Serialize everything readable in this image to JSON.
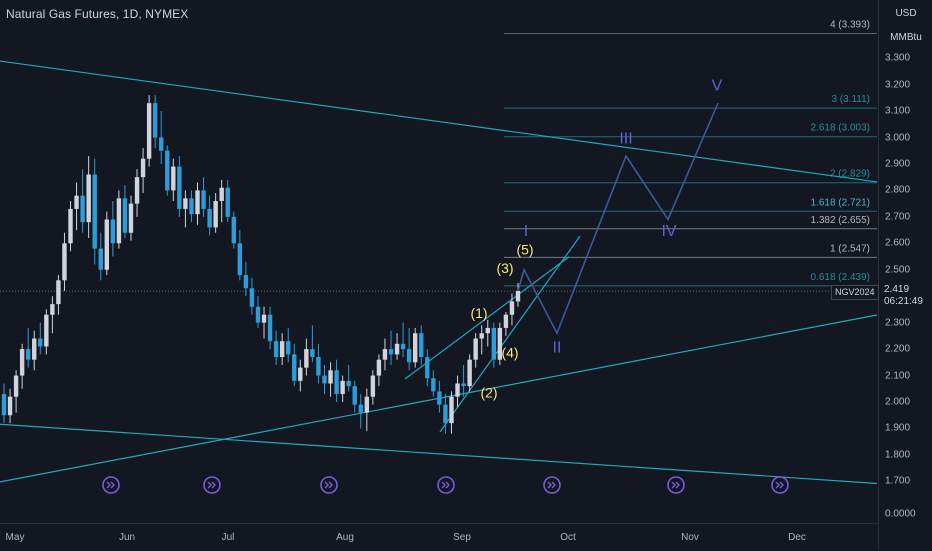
{
  "title": "Natural Gas Futures, 1D, NYMEX",
  "price_axis": {
    "currency": "USD",
    "unit": "MMBtu",
    "ticks": [
      "3.300",
      "3.200",
      "3.100",
      "3.000",
      "2.900",
      "2.800",
      "2.700",
      "2.600",
      "2.500",
      "2.400",
      "2.300",
      "2.200",
      "2.100",
      "2.000",
      "1.900",
      "1.800",
      "1.700",
      "0.0000"
    ]
  },
  "time_axis": {
    "ticks": [
      "May",
      "Jun",
      "Jul",
      "Aug",
      "Sep",
      "Oct",
      "Nov",
      "Dec"
    ]
  },
  "last_price": {
    "symbol": "NGV2024",
    "value": "2.419",
    "countdown": "06:21:49"
  },
  "colors": {
    "background": "#131722",
    "up": "#d1d4dc",
    "down": "#2e9cd6",
    "trendline": "#22a8bc",
    "fib_line": "#1e6f78",
    "wave_path": "#3c5a95",
    "wave_yellow": "#f7e57d",
    "wave_blue": "#5c63d6",
    "event_icon": "#7b5cd6"
  },
  "chart_data": {
    "type": "candlestick",
    "title": "Natural Gas Futures, 1D, NYMEX",
    "ylim": [
      1.62,
      3.46
    ],
    "candles": [
      {
        "t": "May",
        "o": 2.03,
        "h": 2.07,
        "l": 1.92,
        "c": 1.95
      },
      {
        "t": "May",
        "o": 1.95,
        "h": 2.05,
        "l": 1.92,
        "c": 2.02
      },
      {
        "t": "May",
        "o": 2.02,
        "h": 2.12,
        "l": 1.96,
        "c": 2.1
      },
      {
        "t": "May",
        "o": 2.1,
        "h": 2.22,
        "l": 2.05,
        "c": 2.2
      },
      {
        "t": "May",
        "o": 2.2,
        "h": 2.28,
        "l": 2.13,
        "c": 2.16
      },
      {
        "t": "May",
        "o": 2.16,
        "h": 2.27,
        "l": 2.12,
        "c": 2.24
      },
      {
        "t": "May",
        "o": 2.24,
        "h": 2.3,
        "l": 2.18,
        "c": 2.21
      },
      {
        "t": "May",
        "o": 2.21,
        "h": 2.35,
        "l": 2.18,
        "c": 2.33
      },
      {
        "t": "May",
        "o": 2.33,
        "h": 2.4,
        "l": 2.26,
        "c": 2.37
      },
      {
        "t": "May",
        "o": 2.37,
        "h": 2.48,
        "l": 2.33,
        "c": 2.46
      },
      {
        "t": "May",
        "o": 2.46,
        "h": 2.64,
        "l": 2.42,
        "c": 2.6
      },
      {
        "t": "May",
        "o": 2.6,
        "h": 2.76,
        "l": 2.57,
        "c": 2.73
      },
      {
        "t": "May",
        "o": 2.73,
        "h": 2.83,
        "l": 2.65,
        "c": 2.78
      },
      {
        "t": "May",
        "o": 2.78,
        "h": 2.88,
        "l": 2.64,
        "c": 2.68
      },
      {
        "t": "May",
        "o": 2.68,
        "h": 2.93,
        "l": 2.62,
        "c": 2.86
      },
      {
        "t": "May",
        "o": 2.86,
        "h": 2.92,
        "l": 2.52,
        "c": 2.58
      },
      {
        "t": "May",
        "o": 2.58,
        "h": 2.64,
        "l": 2.46,
        "c": 2.5
      },
      {
        "t": "May",
        "o": 2.5,
        "h": 2.72,
        "l": 2.48,
        "c": 2.69
      },
      {
        "t": "May",
        "o": 2.69,
        "h": 2.76,
        "l": 2.55,
        "c": 2.6
      },
      {
        "t": "May",
        "o": 2.6,
        "h": 2.8,
        "l": 2.58,
        "c": 2.77
      },
      {
        "t": "May",
        "o": 2.77,
        "h": 2.82,
        "l": 2.62,
        "c": 2.64
      },
      {
        "t": "May",
        "o": 2.64,
        "h": 2.78,
        "l": 2.61,
        "c": 2.75
      },
      {
        "t": "Jun",
        "o": 2.75,
        "h": 2.88,
        "l": 2.7,
        "c": 2.85
      },
      {
        "t": "Jun",
        "o": 2.85,
        "h": 2.96,
        "l": 2.79,
        "c": 2.92
      },
      {
        "t": "Jun",
        "o": 2.92,
        "h": 3.16,
        "l": 2.89,
        "c": 3.13
      },
      {
        "t": "Jun",
        "o": 3.13,
        "h": 3.16,
        "l": 2.96,
        "c": 3.0
      },
      {
        "t": "Jun",
        "o": 3.0,
        "h": 3.1,
        "l": 2.9,
        "c": 2.95
      },
      {
        "t": "Jun",
        "o": 2.95,
        "h": 2.97,
        "l": 2.78,
        "c": 2.8
      },
      {
        "t": "Jun",
        "o": 2.8,
        "h": 2.92,
        "l": 2.76,
        "c": 2.89
      },
      {
        "t": "Jun",
        "o": 2.89,
        "h": 2.93,
        "l": 2.7,
        "c": 2.73
      },
      {
        "t": "Jun",
        "o": 2.73,
        "h": 2.8,
        "l": 2.66,
        "c": 2.77
      },
      {
        "t": "Jun",
        "o": 2.77,
        "h": 2.8,
        "l": 2.68,
        "c": 2.71
      },
      {
        "t": "Jun",
        "o": 2.71,
        "h": 2.83,
        "l": 2.67,
        "c": 2.8
      },
      {
        "t": "Jun",
        "o": 2.8,
        "h": 2.85,
        "l": 2.7,
        "c": 2.73
      },
      {
        "t": "Jun",
        "o": 2.73,
        "h": 2.78,
        "l": 2.63,
        "c": 2.66
      },
      {
        "t": "Jun",
        "o": 2.66,
        "h": 2.79,
        "l": 2.64,
        "c": 2.76
      },
      {
        "t": "Jun",
        "o": 2.76,
        "h": 2.84,
        "l": 2.68,
        "c": 2.81
      },
      {
        "t": "Jun",
        "o": 2.81,
        "h": 2.84,
        "l": 2.68,
        "c": 2.7
      },
      {
        "t": "Jun",
        "o": 2.7,
        "h": 2.72,
        "l": 2.58,
        "c": 2.6
      },
      {
        "t": "Jul",
        "o": 2.6,
        "h": 2.65,
        "l": 2.46,
        "c": 2.48
      },
      {
        "t": "Jul",
        "o": 2.48,
        "h": 2.53,
        "l": 2.4,
        "c": 2.43
      },
      {
        "t": "Jul",
        "o": 2.43,
        "h": 2.47,
        "l": 2.33,
        "c": 2.36
      },
      {
        "t": "Jul",
        "o": 2.36,
        "h": 2.4,
        "l": 2.28,
        "c": 2.3
      },
      {
        "t": "Jul",
        "o": 2.3,
        "h": 2.36,
        "l": 2.24,
        "c": 2.33
      },
      {
        "t": "Jul",
        "o": 2.33,
        "h": 2.36,
        "l": 2.2,
        "c": 2.23
      },
      {
        "t": "Jul",
        "o": 2.23,
        "h": 2.27,
        "l": 2.14,
        "c": 2.17
      },
      {
        "t": "Jul",
        "o": 2.17,
        "h": 2.26,
        "l": 2.14,
        "c": 2.23
      },
      {
        "t": "Jul",
        "o": 2.23,
        "h": 2.28,
        "l": 2.15,
        "c": 2.18
      },
      {
        "t": "Jul",
        "o": 2.18,
        "h": 2.22,
        "l": 2.06,
        "c": 2.08
      },
      {
        "t": "Jul",
        "o": 2.08,
        "h": 2.16,
        "l": 2.04,
        "c": 2.13
      },
      {
        "t": "Jul",
        "o": 2.13,
        "h": 2.24,
        "l": 2.1,
        "c": 2.2
      },
      {
        "t": "Jul",
        "o": 2.2,
        "h": 2.29,
        "l": 2.15,
        "c": 2.17
      },
      {
        "t": "Jul",
        "o": 2.17,
        "h": 2.22,
        "l": 2.07,
        "c": 2.1
      },
      {
        "t": "Jul",
        "o": 2.1,
        "h": 2.14,
        "l": 2.03,
        "c": 2.07
      },
      {
        "t": "Jul",
        "o": 2.07,
        "h": 2.15,
        "l": 2.02,
        "c": 2.12
      },
      {
        "t": "Jul",
        "o": 2.12,
        "h": 2.16,
        "l": 2.0,
        "c": 2.03
      },
      {
        "t": "Aug",
        "o": 2.03,
        "h": 2.1,
        "l": 2.0,
        "c": 2.08
      },
      {
        "t": "Aug",
        "o": 2.08,
        "h": 2.14,
        "l": 2.04,
        "c": 2.06
      },
      {
        "t": "Aug",
        "o": 2.06,
        "h": 2.08,
        "l": 1.96,
        "c": 1.99
      },
      {
        "t": "Aug",
        "o": 1.99,
        "h": 2.03,
        "l": 1.9,
        "c": 1.96
      },
      {
        "t": "Aug",
        "o": 1.96,
        "h": 2.05,
        "l": 1.89,
        "c": 2.02
      },
      {
        "t": "Aug",
        "o": 2.02,
        "h": 2.12,
        "l": 1.99,
        "c": 2.1
      },
      {
        "t": "Aug",
        "o": 2.1,
        "h": 2.18,
        "l": 2.06,
        "c": 2.16
      },
      {
        "t": "Aug",
        "o": 2.16,
        "h": 2.24,
        "l": 2.12,
        "c": 2.2
      },
      {
        "t": "Aug",
        "o": 2.2,
        "h": 2.27,
        "l": 2.14,
        "c": 2.18
      },
      {
        "t": "Aug",
        "o": 2.18,
        "h": 2.26,
        "l": 2.16,
        "c": 2.22
      },
      {
        "t": "Aug",
        "o": 2.22,
        "h": 2.3,
        "l": 2.17,
        "c": 2.2
      },
      {
        "t": "Aug",
        "o": 2.2,
        "h": 2.28,
        "l": 2.12,
        "c": 2.15
      },
      {
        "t": "Aug",
        "o": 2.15,
        "h": 2.28,
        "l": 2.13,
        "c": 2.26
      },
      {
        "t": "Aug",
        "o": 2.26,
        "h": 2.29,
        "l": 2.14,
        "c": 2.17
      },
      {
        "t": "Aug",
        "o": 2.17,
        "h": 2.2,
        "l": 2.06,
        "c": 2.09
      },
      {
        "t": "Aug",
        "o": 2.09,
        "h": 2.12,
        "l": 2.02,
        "c": 2.04
      },
      {
        "t": "Aug",
        "o": 2.04,
        "h": 2.08,
        "l": 1.96,
        "c": 1.99
      },
      {
        "t": "Aug",
        "o": 1.99,
        "h": 2.03,
        "l": 1.88,
        "c": 1.92
      },
      {
        "t": "Sep",
        "o": 1.92,
        "h": 2.04,
        "l": 1.88,
        "c": 2.02
      },
      {
        "t": "Sep",
        "o": 2.02,
        "h": 2.1,
        "l": 1.98,
        "c": 2.07
      },
      {
        "t": "Sep",
        "o": 2.07,
        "h": 2.14,
        "l": 2.02,
        "c": 2.06
      },
      {
        "t": "Sep",
        "o": 2.06,
        "h": 2.18,
        "l": 2.04,
        "c": 2.16
      },
      {
        "t": "Sep",
        "o": 2.16,
        "h": 2.26,
        "l": 2.13,
        "c": 2.24
      },
      {
        "t": "Sep",
        "o": 2.24,
        "h": 2.29,
        "l": 2.18,
        "c": 2.26
      },
      {
        "t": "Sep",
        "o": 2.26,
        "h": 2.31,
        "l": 2.21,
        "c": 2.28
      },
      {
        "t": "Sep",
        "o": 2.28,
        "h": 2.3,
        "l": 2.13,
        "c": 2.16
      },
      {
        "t": "Sep",
        "o": 2.16,
        "h": 2.3,
        "l": 2.14,
        "c": 2.28
      },
      {
        "t": "Sep",
        "o": 2.28,
        "h": 2.34,
        "l": 2.25,
        "c": 2.33
      },
      {
        "t": "Sep",
        "o": 2.33,
        "h": 2.41,
        "l": 2.29,
        "c": 2.38
      },
      {
        "t": "Sep",
        "o": 2.38,
        "h": 2.45,
        "l": 2.36,
        "c": 2.42
      }
    ],
    "trendlines": [
      {
        "x": [
          0,
          877
        ],
        "y": [
          3.289,
          2.832
        ]
      },
      {
        "x": [
          0,
          877
        ],
        "y": [
          1.916,
          1.692
        ]
      },
      {
        "x": [
          0,
          877
        ],
        "y": [
          1.698,
          2.329
        ]
      },
      {
        "x": [
          405,
          569
        ],
        "y": [
          2.087,
          2.549
        ]
      },
      {
        "x": [
          440,
          580
        ],
        "y": [
          1.887,
          2.627
        ]
      }
    ],
    "fib_levels": [
      {
        "label": "4 (3.393)",
        "value": 3.393
      },
      {
        "label": "3 (3.111)",
        "value": 3.111
      },
      {
        "label": "2.618 (3.003)",
        "value": 3.003
      },
      {
        "label": "2 (2.829)",
        "value": 2.829
      },
      {
        "label": "1.618 (2.721)",
        "value": 2.721
      },
      {
        "label": "1.382 (2.655)",
        "value": 2.655
      },
      {
        "label": "1 (2.547)",
        "value": 2.547
      },
      {
        "label": "0.618 (2.439)",
        "value": 2.439
      }
    ],
    "waves": [
      {
        "label": "(1)",
        "price": 2.34
      },
      {
        "label": "(2)",
        "price": 2.04
      },
      {
        "label": "(3)",
        "price": 2.51
      },
      {
        "label": "(4)",
        "price": 2.19
      },
      {
        "label": "(5)",
        "price": 2.58
      },
      {
        "label": "I",
        "price": 2.65
      },
      {
        "label": "II",
        "price": 2.21
      },
      {
        "label": "III",
        "price": 3.0
      },
      {
        "label": "IV",
        "price": 2.65
      },
      {
        "label": "V",
        "price": 3.2
      }
    ],
    "projection_path": [
      {
        "t": "Sep",
        "price": 2.42
      },
      {
        "t": "Sep",
        "price": 2.5
      },
      {
        "t": "Sep",
        "price": 2.26
      },
      {
        "t": "Oct",
        "price": 2.93
      },
      {
        "t": "Oct",
        "price": 2.69
      },
      {
        "t": "Nov",
        "price": 3.13
      }
    ]
  }
}
